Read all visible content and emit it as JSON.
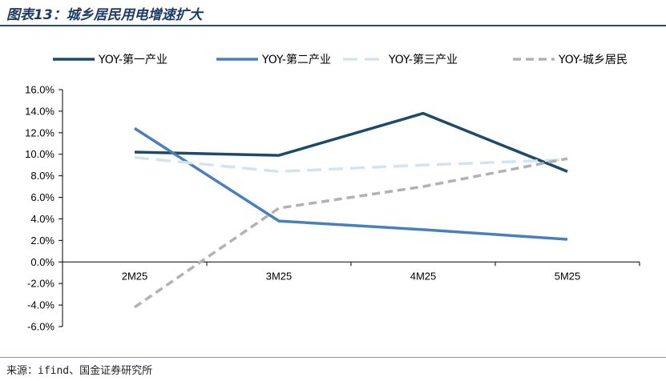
{
  "figure": {
    "title": "图表13：城乡居民用电增速扩大",
    "source": "来源：ifind、国金证券研究所"
  },
  "chart_data": {
    "type": "line",
    "categories": [
      "2M25",
      "3M25",
      "4M25",
      "5M25"
    ],
    "ylim": [
      -6,
      16
    ],
    "ytick_step": 2,
    "ytick_labels": [
      "-6.0%",
      "-4.0%",
      "-2.0%",
      "0.0%",
      "2.0%",
      "4.0%",
      "6.0%",
      "8.0%",
      "10.0%",
      "12.0%",
      "14.0%",
      "16.0%"
    ],
    "grid": false,
    "legend_position": "top",
    "series": [
      {
        "name": "YOY-第一产业",
        "values": [
          10.2,
          9.9,
          13.8,
          8.4
        ],
        "color": "#1b4a6b",
        "dashed": false
      },
      {
        "name": "YOY-第二产业",
        "values": [
          12.4,
          3.8,
          3.0,
          2.1
        ],
        "color": "#4a7fbf",
        "dashed": false
      },
      {
        "name": "YOY-第三产业",
        "values": [
          9.7,
          8.4,
          9.0,
          9.5
        ],
        "color": "#d4e3f2",
        "dashed": true
      },
      {
        "name": "YOY-城乡居民",
        "values": [
          -4.2,
          5.0,
          7.0,
          9.6
        ],
        "color": "#b2b2b2",
        "dashed": true
      }
    ]
  }
}
